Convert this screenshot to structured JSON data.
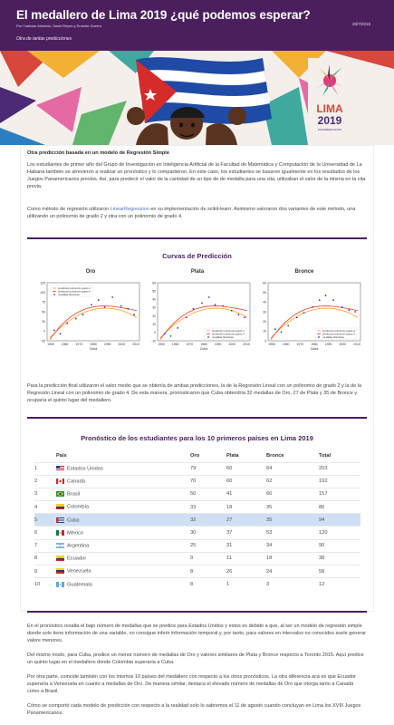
{
  "header": {
    "title": "El medallero de Lima 2019 ¿qué podemos esperar?",
    "authors": "Por Yudivian Almeida, Saimi Reyes y Ernesto Guerra",
    "date": "28/7/2019",
    "subtitle": "Otra de tantas predicciones"
  },
  "banner": {
    "logo_word": "LIMA",
    "logo_year": "2019",
    "logo_sub": "PANAMERICANOS"
  },
  "intro": {
    "title": "Otra predicción basada en un modelo de Regresión Simple",
    "p1": "Los estudiantes de primer año del Grupo de Investigación en Inteligencia Artificial de la Facultad de Matemática y Computación de la Universidad de La Habana también se atrevieron a realizar un pronóstico y lo compartieron. En este caso, los estudiantes se basaron igualmente en los resultados de los Juegos Panamericanos previos. Así, para predecir el valor de la cantidad de un tipo de de medalla para una cita, utilizaban el valor de la misma en la cita previa.",
    "p2_before": "Como método de regresión utilizaron ",
    "p2_link": "LinearRegression",
    "p2_after": " en su implementación de scikit-learn. Asimismo valoraron dos variantes de este método, una utilizando un polinomio de grado 2 y otra con un polinomio de grado 4."
  },
  "curves": {
    "title": "Curvas de Predicción",
    "legend": [
      "predicción polinomio grado 2",
      "predicción polinomio grado 4",
      "medallas históricas"
    ],
    "xlabel": "Cuba",
    "colors": {
      "grade2": "#ff9f1c",
      "grade4": "#e8402f",
      "hist": "#2240c8"
    },
    "charts": [
      {
        "title": "Oro",
        "yticks": [
          "-25",
          "0",
          "25",
          "50",
          "75",
          "100",
          "125"
        ],
        "xticks": [
          "1950",
          "1960",
          "1970",
          "1980",
          "1990",
          "2000",
          "2010"
        ]
      },
      {
        "title": "Plata",
        "yticks": [
          "-10",
          "0",
          "10",
          "20",
          "30",
          "40",
          "50",
          "60"
        ],
        "xticks": [
          "1950",
          "1960",
          "1970",
          "1980",
          "1990",
          "2000",
          "2010"
        ]
      },
      {
        "title": "Bronce",
        "yticks": [
          "0",
          "10",
          "20",
          "30",
          "40",
          "50",
          "60"
        ],
        "xticks": [
          "1950",
          "1960",
          "1970",
          "1980",
          "1990",
          "2000",
          "2010"
        ]
      }
    ]
  },
  "middle": {
    "p": "Para la predicción final utilizaron el valor medio que se obtenía de ambas predicciones, la de la Regresión Lineal con un polinomio de grado 2 y la de la Regresión Lineal con un polinomio de grado 4. De esta manera, pronosticaron que Cuba obtendría 32 medallas de Oro, 27 de Plata y 35 de Bronce y ocuparía el quinto lugar del medallero."
  },
  "table": {
    "title": "Pronóstico de los estudiantes para los 10 primeros países en Lima 2019",
    "headers": [
      "",
      "País",
      "Oro",
      "Plata",
      "Bronce",
      "Total"
    ],
    "rows": [
      {
        "rank": "1",
        "country": "Estados Unidos",
        "oro": "79",
        "plata": "60",
        "bronce": "64",
        "total": "203"
      },
      {
        "rank": "2",
        "country": "Canadá",
        "oro": "70",
        "plata": "60",
        "bronce": "62",
        "total": "192"
      },
      {
        "rank": "3",
        "country": "Brasil",
        "oro": "50",
        "plata": "41",
        "bronce": "66",
        "total": "157"
      },
      {
        "rank": "4",
        "country": "Colombia",
        "oro": "33",
        "plata": "18",
        "bronce": "35",
        "total": "86"
      },
      {
        "rank": "5",
        "country": "Cuba",
        "oro": "32",
        "plata": "27",
        "bronce": "35",
        "total": "94"
      },
      {
        "rank": "6",
        "country": "México",
        "oro": "30",
        "plata": "37",
        "bronce": "53",
        "total": "120"
      },
      {
        "rank": "7",
        "country": "Argentina",
        "oro": "25",
        "plata": "31",
        "bronce": "34",
        "total": "90"
      },
      {
        "rank": "8",
        "country": "Ecuador",
        "oro": "9",
        "plata": "11",
        "bronce": "18",
        "total": "38"
      },
      {
        "rank": "9",
        "country": "Venezuela",
        "oro": "8",
        "plata": "26",
        "bronce": "24",
        "total": "58"
      },
      {
        "rank": "10",
        "country": "Guatemala",
        "oro": "8",
        "plata": "1",
        "bronce": "3",
        "total": "12"
      }
    ]
  },
  "closing": {
    "p1": "En el pronóstico resalta el bajo número de medallas que se predice para Estados Unidos y estos es debido a que, al ser un modelo de regresión simple donde solo tiene información de una variable, no consigue inferir información temporal y, por tanto, para valores en intervalos no conocidos suele generar valore menores.",
    "p2": "Del mismo modo, para Cuba, predice un menor número de medallas de Oro y valores similares de Plata y Bronce respecto a Toronto 2015. Aquí predice un quinto lugar en el medallero donde Colombia superaría a Cuba.",
    "p3": "Por otra parte, coincide también con los mismos 10 países del medallero con respecto a los otros pronósticos. La otra diferencia acá es que Ecuador superaría a Venezuela en cuanto a medallas de Oro. De manera similar, destaca el elevado número de medallas de Oro que otorga tanto a Canadá como a Brasil.",
    "p4": "Cómo se comportó cada modelo de predicción con respecto a la realidad solo lo sabremos el 11 de agosto cuando concluyan en Lima los XVIII Juegos Panamericanos."
  }
}
